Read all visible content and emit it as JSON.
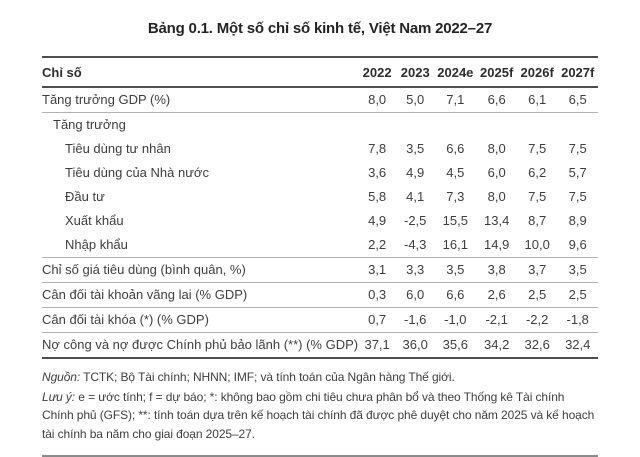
{
  "title": "Bảng 0.1. Một số chỉ số kinh tế, Việt Nam 2022–27",
  "table": {
    "headers": [
      "Chỉ số",
      "2022",
      "2023",
      "2024e",
      "2025f",
      "2026f",
      "2027f"
    ],
    "rows": [
      {
        "label": "Tăng trưởng GDP (%)",
        "indent": 0,
        "border": "thin",
        "values": [
          "8,0",
          "5,0",
          "7,1",
          "6,6",
          "6,1",
          "6,5"
        ]
      },
      {
        "label": "Tăng trưởng",
        "indent": 1,
        "border": "none",
        "values": [
          "",
          "",
          "",
          "",
          "",
          ""
        ]
      },
      {
        "label": "Tiêu dùng tư nhân",
        "indent": 2,
        "border": "none",
        "values": [
          "7,8",
          "3,5",
          "6,6",
          "8,0",
          "7,5",
          "7,5"
        ]
      },
      {
        "label": "Tiêu dùng của Nhà nước",
        "indent": 2,
        "border": "none",
        "values": [
          "3,6",
          "4,9",
          "4,5",
          "6,0",
          "6,2",
          "5,7"
        ]
      },
      {
        "label": "Đầu tư",
        "indent": 2,
        "border": "none",
        "values": [
          "5,8",
          "4,1",
          "7,3",
          "8,0",
          "7,5",
          "7,5"
        ]
      },
      {
        "label": "Xuất khẩu",
        "indent": 2,
        "border": "none",
        "values": [
          "4,9",
          "-2,5",
          "15,5",
          "13,4",
          "8,7",
          "8,9"
        ]
      },
      {
        "label": "Nhập khẩu",
        "indent": 2,
        "border": "thin",
        "values": [
          "2,2",
          "-4,3",
          "16,1",
          "14,9",
          "10,0",
          "9,6"
        ]
      },
      {
        "label": "Chỉ số giá tiêu dùng (bình quân, %)",
        "indent": 0,
        "border": "thin",
        "values": [
          "3,1",
          "3,3",
          "3,5",
          "3,8",
          "3,7",
          "3,5"
        ]
      },
      {
        "label": "Cân đối tài khoản vãng lai (% GDP)",
        "indent": 0,
        "border": "thin",
        "values": [
          "0,3",
          "6,0",
          "6,6",
          "2,6",
          "2,5",
          "2,5"
        ]
      },
      {
        "label": "Cân đối tài khóa (*) (% GDP)",
        "indent": 0,
        "border": "thin",
        "values": [
          "0,7",
          "-1,6",
          "-1,0",
          "-2,1",
          "-2,2",
          "-1,8"
        ]
      },
      {
        "label": "Nợ công và nợ được Chính phủ bảo lãnh (**) (% GDP)",
        "indent": 0,
        "border": "thick",
        "values": [
          "37,1",
          "36,0",
          "35,6",
          "34,2",
          "32,6",
          "32,4"
        ]
      }
    ]
  },
  "notes": {
    "source_label": "Nguồn:",
    "source_text": " TCTK; Bộ Tài chính; NHNN; IMF; và tính toán của Ngân hàng Thế giới.",
    "note_label": "Lưu ý:",
    "note_text": " e = ước tính; f = dự báo; *: không bao gồm chi tiêu chưa phân bổ và theo Thống kê Tài chính Chính phủ (GFS); **: tính toán dựa trên kế hoạch tài chính đã được phê duyệt cho năm 2025 và kế hoạch tài chính ba năm cho giai đoạn 2025–27."
  },
  "colors": {
    "rule_dark": "#4f4f4f",
    "rule_light": "#b2b2b2",
    "rule_notes": "#8a8a8a",
    "text": "#3e3e3e",
    "title_text": "#242424",
    "background": "#ffffff"
  }
}
